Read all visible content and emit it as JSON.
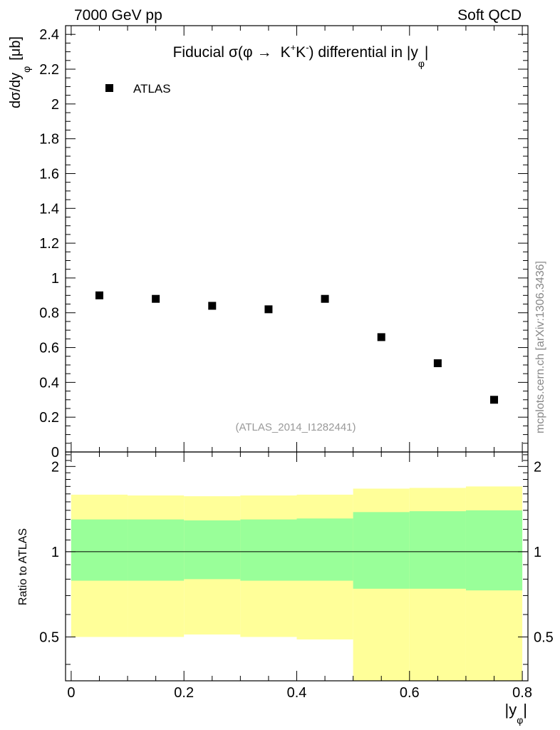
{
  "header": {
    "left": "7000 GeV pp",
    "right": "Soft QCD"
  },
  "side_label": "mcplots.cern.ch [arXiv:1306.3436]",
  "chart_data": [
    {
      "type": "scatter",
      "title_parts": {
        "prefix": "Fiducial",
        "sigma": "σ(",
        "phi": "φ",
        "arrow": "→",
        "k1": "K",
        "k1_sup": "+",
        "k2": "K",
        "k2_sup": "-",
        "suffix": ") differential in |y",
        "sub": "φ",
        "end": "|"
      },
      "ylabel_parts": {
        "main": "dσ/dy",
        "sub": "φ",
        "unit": "[μb]"
      },
      "xlim": [
        -0.01,
        0.81
      ],
      "ylim": [
        0,
        2.45
      ],
      "y_ticks": [
        "0",
        "0.2",
        "0.4",
        "0.6",
        "0.8",
        "1",
        "1.2",
        "1.4",
        "1.6",
        "1.8",
        "2",
        "2.2",
        "2.4"
      ],
      "legend": {
        "placement": "top-left",
        "entries": [
          "ATLAS"
        ]
      },
      "reference": "(ATLAS_2014_I1282441)",
      "series": [
        {
          "name": "ATLAS",
          "color": "#000000",
          "x": [
            0.05,
            0.15,
            0.25,
            0.35,
            0.45,
            0.55,
            0.65,
            0.75
          ],
          "y": [
            0.9,
            0.88,
            0.84,
            0.82,
            0.88,
            0.66,
            0.51,
            0.3
          ]
        }
      ]
    },
    {
      "type": "area",
      "ylabel": "Ratio to ATLAS",
      "xlabel_parts": {
        "main": "|y",
        "sub": "φ",
        "end": "|"
      },
      "xlim": [
        -0.01,
        0.81
      ],
      "ylim": [
        0.35,
        2.25
      ],
      "x_ticks": [
        "0",
        "0.2",
        "0.4",
        "0.6",
        "0.8"
      ],
      "y_ticks": [
        "0.5",
        "1",
        "2"
      ],
      "bin_edges": [
        0.0,
        0.1,
        0.2,
        0.3,
        0.4,
        0.5,
        0.6,
        0.7,
        0.8
      ],
      "reference_line": 1,
      "bands": [
        {
          "name": "stat",
          "color": "#99ff99",
          "lower": [
            0.79,
            0.79,
            0.8,
            0.79,
            0.79,
            0.74,
            0.74,
            0.73
          ],
          "upper": [
            1.3,
            1.3,
            1.29,
            1.3,
            1.31,
            1.38,
            1.39,
            1.4
          ]
        },
        {
          "name": "total",
          "color": "#ffff99",
          "lower": [
            0.5,
            0.5,
            0.51,
            0.5,
            0.49,
            0.35,
            0.35,
            0.35
          ],
          "upper": [
            1.59,
            1.58,
            1.57,
            1.58,
            1.59,
            1.67,
            1.68,
            1.7
          ]
        }
      ]
    }
  ]
}
